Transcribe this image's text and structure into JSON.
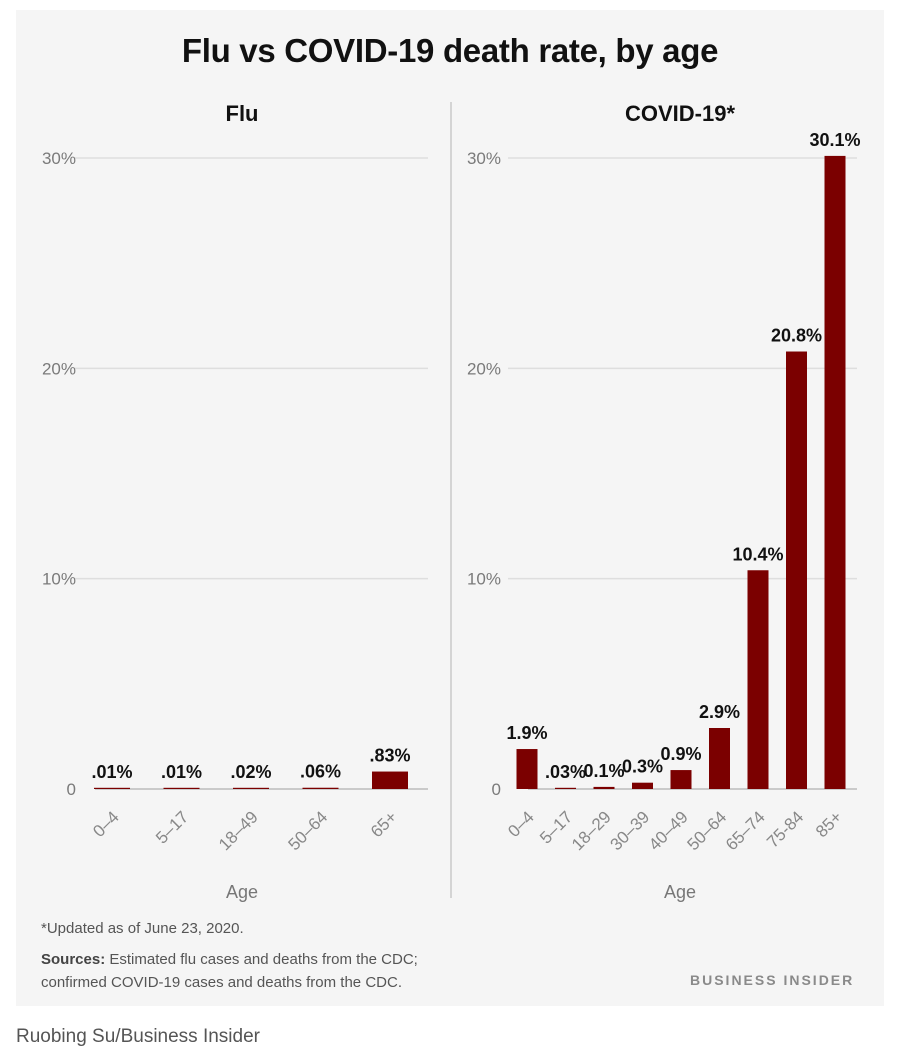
{
  "title": "Flu vs COVID-19 death rate, by age",
  "chart_data": [
    {
      "type": "bar",
      "title": "Flu",
      "xlabel": "Age",
      "ylabel": "",
      "categories": [
        "0–4",
        "5–17",
        "18–49",
        "50–64",
        "65+"
      ],
      "values": [
        0.01,
        0.01,
        0.02,
        0.06,
        0.83
      ],
      "value_labels": [
        ".01%",
        ".01%",
        ".02%",
        ".06%",
        ".83%"
      ],
      "yticks": [
        "0",
        "10%",
        "20%",
        "30%"
      ],
      "ylim": [
        0,
        30
      ],
      "grid": true,
      "legend": "none"
    },
    {
      "type": "bar",
      "title": "COVID-19*",
      "xlabel": "Age",
      "ylabel": "",
      "categories": [
        "0–4",
        "5–17",
        "18–29",
        "30–39",
        "40–49",
        "50–64",
        "65–74",
        "75-84",
        "85+"
      ],
      "values": [
        1.9,
        0.03,
        0.1,
        0.3,
        0.9,
        2.9,
        10.4,
        20.8,
        30.1
      ],
      "value_labels": [
        "1.9%",
        ".03%",
        "0.1%",
        "0.3%",
        "0.9%",
        "2.9%",
        "10.4%",
        "20.8%",
        "30.1%"
      ],
      "yticks": [
        "0",
        "10%",
        "20%",
        "30%"
      ],
      "ylim": [
        0,
        30
      ],
      "grid": true,
      "legend": "none"
    }
  ],
  "colors": {
    "bar": "#7b0000",
    "grid": "#dedede",
    "card_background": "#f5f5f5"
  },
  "footnote": "*Updated as of June 23, 2020.",
  "sources_label": "Sources:",
  "sources_text": " Estimated flu cases and deaths from the CDC; confirmed COVID-19 cases and deaths from the CDC.",
  "brand": "BUSINESS INSIDER",
  "credit": "Ruobing Su/Business Insider"
}
